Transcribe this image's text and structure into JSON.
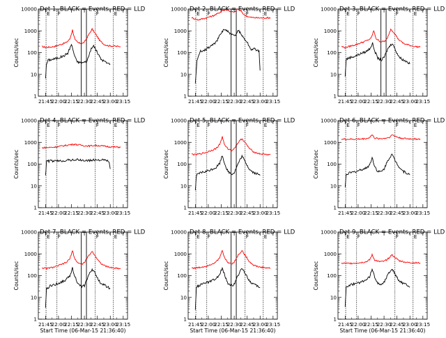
{
  "chart_data": {
    "type": "line",
    "layout": "3x3 grid",
    "y_scale": "log",
    "ylim": [
      1,
      10000
    ],
    "y_ticks": [
      "1",
      "10",
      "100",
      "1000",
      "10000"
    ],
    "ylabel": "Counts/sec",
    "xlabel": "Start Time (06-Mar-15 21:36:40)",
    "x_tick_labels": [
      "21:45",
      "22:00",
      "22:15",
      "22:30",
      "22:45",
      "23:00",
      "23:15"
    ],
    "x_tick_hours": [
      21.75,
      22.0,
      22.25,
      22.5,
      22.75,
      23.0,
      23.25
    ],
    "xlim": [
      21.611,
      23.333
    ],
    "grid": false,
    "legend": "none",
    "colors": {
      "events": "#000000",
      "lld": "#ff0000",
      "frame": "#000000"
    },
    "panels": [
      {
        "title": "Det 1, BLACK = Events, RED = LLD",
        "show_xlabel": false,
        "flags": [
          "E",
          "F",
          "F",
          "E"
        ],
        "dotted_lines": [
          21.97,
          22.71,
          23.06
        ],
        "solid_lines": [
          22.44,
          22.54
        ],
        "events": {
          "t": [
            21.75,
            21.77,
            21.8,
            21.9,
            22.0,
            22.1,
            22.18,
            22.25,
            22.3,
            22.35,
            22.4,
            22.48,
            22.55,
            22.62,
            22.68,
            22.75,
            22.82,
            22.9,
            22.95,
            23.0
          ],
          "y": [
            7,
            30,
            45,
            50,
            58,
            70,
            95,
            240,
            90,
            40,
            35,
            35,
            40,
            130,
            210,
            100,
            50,
            38,
            32,
            30
          ]
        },
        "lld": {
          "t": [
            21.68,
            21.75,
            21.85,
            21.95,
            22.05,
            22.15,
            22.22,
            22.27,
            22.32,
            22.38,
            22.45,
            22.5,
            22.58,
            22.65,
            22.72,
            22.8,
            22.88,
            22.95,
            23.05,
            23.2
          ],
          "y": [
            190,
            175,
            180,
            200,
            240,
            290,
            420,
            1100,
            380,
            280,
            260,
            300,
            640,
            1200,
            700,
            350,
            240,
            210,
            200,
            190
          ]
        }
      },
      {
        "title": "Det 2, BLACK = Events, RED = LLD",
        "show_xlabel": false,
        "flags": [
          "E",
          "F",
          "F",
          "E"
        ],
        "dotted_lines": [
          21.97,
          22.71,
          23.06
        ],
        "solid_lines": [
          22.44,
          22.54
        ],
        "events": {
          "t": [
            21.75,
            21.78,
            21.85,
            21.95,
            22.05,
            22.15,
            22.22,
            22.3,
            22.38,
            22.45,
            22.52,
            22.58,
            22.65,
            22.75,
            22.82,
            22.9,
            22.98,
            23.0
          ],
          "y": [
            4,
            40,
            120,
            140,
            200,
            300,
            600,
            1200,
            900,
            650,
            600,
            1100,
            600,
            300,
            140,
            150,
            110,
            15
          ]
        },
        "lld": {
          "t": [
            21.68,
            21.8,
            21.9,
            22.0,
            22.1,
            22.2,
            22.28,
            22.35,
            22.42,
            22.5,
            22.56,
            22.62,
            22.7,
            22.8,
            22.9,
            23.0,
            23.2
          ],
          "y": [
            4000,
            3200,
            3600,
            4200,
            5000,
            6500,
            9000,
            9500,
            8000,
            7000,
            10000,
            8500,
            5200,
            4200,
            4000,
            3900,
            4000
          ]
        }
      },
      {
        "title": "Det 3, BLACK = Events, RED = LLD",
        "show_xlabel": false,
        "flags": [
          "E",
          "F",
          "F",
          "E"
        ],
        "dotted_lines": [
          21.97,
          22.71,
          23.06
        ],
        "solid_lines": [
          22.44,
          22.54
        ],
        "events": {
          "t": [
            21.75,
            21.77,
            21.85,
            21.95,
            22.05,
            22.15,
            22.22,
            22.28,
            22.32,
            22.38,
            22.45,
            22.5,
            22.58,
            22.66,
            22.72,
            22.8,
            22.88,
            22.95,
            23.0
          ],
          "y": [
            8,
            50,
            60,
            70,
            90,
            110,
            150,
            260,
            120,
            55,
            45,
            60,
            160,
            280,
            130,
            60,
            45,
            38,
            30
          ]
        },
        "lld": {
          "t": [
            21.68,
            21.75,
            21.85,
            21.95,
            22.05,
            22.15,
            22.25,
            22.3,
            22.35,
            22.42,
            22.5,
            22.56,
            22.63,
            22.7,
            22.78,
            22.88,
            22.98,
            23.1,
            23.2
          ],
          "y": [
            190,
            170,
            200,
            230,
            280,
            340,
            450,
            1000,
            430,
            330,
            320,
            420,
            1200,
            800,
            400,
            260,
            220,
            190,
            180
          ]
        }
      },
      {
        "title": "Det 4, BLACK = Events, RED = LLD",
        "show_xlabel": false,
        "flags": [
          "E",
          "F",
          "F",
          "E"
        ],
        "dotted_lines": [
          21.97,
          22.71,
          23.06
        ],
        "solid_lines": [],
        "events": {
          "t": [
            21.75,
            21.77,
            21.85,
            21.95,
            22.05,
            22.15,
            22.25,
            22.35,
            22.45,
            22.55,
            22.65,
            22.75,
            22.85,
            22.92,
            22.97,
            23.0
          ],
          "y": [
            30,
            135,
            140,
            138,
            142,
            150,
            155,
            160,
            150,
            145,
            150,
            160,
            155,
            148,
            140,
            60
          ]
        },
        "lld": {
          "t": [
            21.68,
            21.8,
            21.9,
            22.0,
            22.1,
            22.2,
            22.3,
            22.4,
            22.5,
            22.6,
            22.7,
            22.8,
            22.9,
            23.0,
            23.2
          ],
          "y": [
            560,
            580,
            600,
            640,
            700,
            760,
            820,
            760,
            700,
            680,
            720,
            700,
            660,
            620,
            600
          ]
        }
      },
      {
        "title": "Det 5, BLACK = Events, RED = LLD",
        "show_xlabel": false,
        "flags": [
          "E",
          "F",
          "F",
          "E"
        ],
        "dotted_lines": [
          21.97,
          22.71,
          23.06
        ],
        "solid_lines": [
          22.44,
          22.54
        ],
        "events": {
          "t": [
            21.75,
            21.77,
            21.85,
            21.95,
            22.05,
            22.15,
            22.22,
            22.27,
            22.32,
            22.38,
            22.45,
            22.5,
            22.58,
            22.65,
            22.72,
            22.8,
            22.88,
            22.95,
            23.0
          ],
          "y": [
            6,
            30,
            40,
            45,
            55,
            70,
            110,
            250,
            100,
            45,
            35,
            40,
            110,
            230,
            120,
            55,
            40,
            35,
            30
          ]
        },
        "lld": {
          "t": [
            21.68,
            21.75,
            21.85,
            21.95,
            22.05,
            22.15,
            22.22,
            22.27,
            22.32,
            22.38,
            22.45,
            22.5,
            22.58,
            22.65,
            22.72,
            22.8,
            22.88,
            22.98,
            23.1,
            23.2
          ],
          "y": [
            290,
            270,
            300,
            340,
            420,
            520,
            800,
            1800,
            700,
            500,
            430,
            520,
            1000,
            1500,
            900,
            500,
            360,
            300,
            280,
            270
          ]
        }
      },
      {
        "title": "Det 6, BLACK = Events, RED = LLD",
        "show_xlabel": false,
        "flags": [
          "E",
          "F",
          "F",
          "E"
        ],
        "dotted_lines": [
          21.97,
          22.71,
          23.06
        ],
        "solid_lines": [],
        "events": {
          "t": [
            21.75,
            21.77,
            21.85,
            21.95,
            22.05,
            22.15,
            22.22,
            22.27,
            22.32,
            22.38,
            22.45,
            22.5,
            22.58,
            22.65,
            22.72,
            22.8,
            22.88,
            22.95,
            23.0
          ],
          "y": [
            8,
            35,
            40,
            45,
            55,
            65,
            90,
            200,
            80,
            45,
            45,
            60,
            160,
            280,
            140,
            70,
            45,
            38,
            32
          ]
        },
        "lld": {
          "t": [
            21.68,
            21.8,
            21.95,
            22.1,
            22.2,
            22.27,
            22.32,
            22.4,
            22.5,
            22.6,
            22.66,
            22.72,
            22.8,
            22.95,
            23.2
          ],
          "y": [
            1400,
            1380,
            1400,
            1450,
            1550,
            2200,
            1550,
            1480,
            1500,
            1700,
            2200,
            1900,
            1600,
            1450,
            1420
          ]
        }
      },
      {
        "title": "Det 7, BLACK = Events, RED = LLD",
        "show_xlabel": true,
        "flags": [
          "E",
          "F",
          "F",
          "E"
        ],
        "dotted_lines": [
          21.97,
          22.71,
          23.06
        ],
        "solid_lines": [
          22.44,
          22.54
        ],
        "events": {
          "t": [
            21.75,
            21.77,
            21.85,
            21.95,
            22.05,
            22.15,
            22.22,
            22.27,
            22.32,
            22.38,
            22.45,
            22.5,
            22.58,
            22.65,
            22.72,
            22.8,
            22.88,
            22.95,
            23.0
          ],
          "y": [
            3,
            25,
            35,
            40,
            50,
            65,
            100,
            220,
            90,
            40,
            30,
            35,
            100,
            200,
            110,
            50,
            38,
            30,
            25
          ]
        },
        "lld": {
          "t": [
            21.68,
            21.75,
            21.85,
            21.95,
            22.05,
            22.15,
            22.22,
            22.27,
            22.32,
            22.38,
            22.45,
            22.5,
            22.58,
            22.65,
            22.72,
            22.8,
            22.88,
            22.98,
            23.1,
            23.2
          ],
          "y": [
            230,
            210,
            230,
            260,
            320,
            400,
            600,
            1400,
            550,
            380,
            330,
            400,
            800,
            1300,
            750,
            400,
            290,
            240,
            220,
            210
          ]
        }
      },
      {
        "title": "Det 8, BLACK = Events, RED = LLD",
        "show_xlabel": true,
        "flags": [
          "E",
          "F",
          "F",
          "E"
        ],
        "dotted_lines": [
          21.97,
          22.71,
          23.06
        ],
        "solid_lines": [
          22.44,
          22.54
        ],
        "events": {
          "t": [
            21.75,
            21.77,
            21.85,
            21.95,
            22.05,
            22.15,
            22.22,
            22.27,
            22.32,
            22.38,
            22.45,
            22.5,
            22.58,
            22.65,
            22.72,
            22.8,
            22.88,
            22.95,
            23.0
          ],
          "y": [
            3,
            30,
            38,
            45,
            55,
            70,
            110,
            240,
            100,
            45,
            35,
            40,
            110,
            220,
            120,
            55,
            40,
            32,
            28
          ]
        },
        "lld": {
          "t": [
            21.68,
            21.75,
            21.85,
            21.95,
            22.05,
            22.15,
            22.22,
            22.27,
            22.32,
            22.38,
            22.45,
            22.5,
            22.58,
            22.65,
            22.72,
            22.8,
            22.88,
            22.98,
            23.1,
            23.2
          ],
          "y": [
            230,
            220,
            240,
            270,
            330,
            420,
            650,
            1500,
            600,
            400,
            350,
            420,
            900,
            1400,
            800,
            420,
            300,
            250,
            230,
            220
          ]
        }
      },
      {
        "title": "Det 9, BLACK = Events, RED = LLD",
        "show_xlabel": true,
        "flags": [
          "E",
          "F",
          "F",
          "E"
        ],
        "dotted_lines": [
          21.97,
          22.71,
          23.06
        ],
        "solid_lines": [],
        "events": {
          "t": [
            21.75,
            21.77,
            21.85,
            21.95,
            22.05,
            22.15,
            22.22,
            22.27,
            22.32,
            22.38,
            22.45,
            22.5,
            22.58,
            22.65,
            22.72,
            22.8,
            22.88,
            22.95,
            23.0
          ],
          "y": [
            4,
            30,
            38,
            42,
            50,
            62,
            90,
            190,
            85,
            45,
            40,
            50,
            120,
            210,
            110,
            55,
            42,
            36,
            30
          ]
        },
        "lld": {
          "t": [
            21.68,
            21.8,
            21.95,
            22.05,
            22.15,
            22.22,
            22.27,
            22.32,
            22.4,
            22.5,
            22.58,
            22.65,
            22.72,
            22.8,
            22.95,
            23.2
          ],
          "y": [
            370,
            360,
            380,
            400,
            430,
            520,
            900,
            520,
            440,
            450,
            600,
            900,
            650,
            480,
            400,
            380
          ]
        }
      }
    ]
  }
}
